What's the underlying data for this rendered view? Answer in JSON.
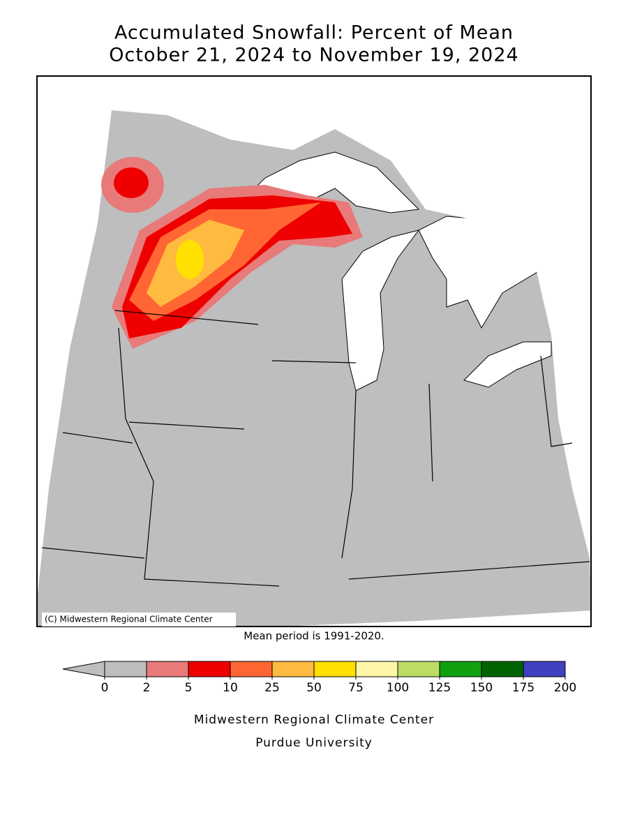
{
  "title": {
    "line1": "Accumulated Snowfall: Percent of Mean",
    "line2": "October 21, 2024 to November 19, 2024"
  },
  "map": {
    "copyright": "(C) Midwestern Regional Climate Center",
    "note": "Mean period is 1991-2020."
  },
  "legend": {
    "ticks": [
      0,
      2,
      5,
      10,
      25,
      50,
      75,
      100,
      125,
      150,
      175,
      200
    ],
    "colors": [
      "#bebebe",
      "#e87a7a",
      "#ee0000",
      "#ff6633",
      "#ffbb40",
      "#ffe000",
      "#fff7a8",
      "#bcdc64",
      "#10a010",
      "#006400",
      "#4040c0"
    ],
    "under_color": "#bebebe"
  },
  "footer": {
    "line1": "Midwestern Regional Climate Center",
    "line2": "Purdue University"
  }
}
